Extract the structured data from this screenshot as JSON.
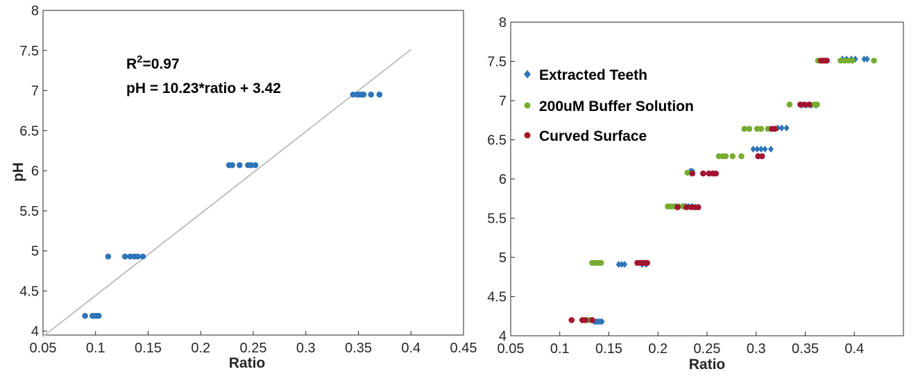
{
  "chart_data": [
    {
      "type": "scatter",
      "xlabel": "Ratio",
      "ylabel": "pH",
      "xlim": [
        0.05,
        0.45
      ],
      "ylim": [
        3.95,
        8
      ],
      "xticks": [
        "0.05",
        "0.1",
        "0.15",
        "0.2",
        "0.25",
        "0.3",
        "0.35",
        "0.4",
        "0.45"
      ],
      "yticks": [
        "4",
        "4.5",
        "5",
        "5.5",
        "6",
        "6.5",
        "7",
        "7.5",
        "8"
      ],
      "grid": false,
      "annotation": {
        "r2_prefix": "R",
        "r2_sup": "2",
        "r2_value": "=0.97",
        "equation": "pH = 10.23*ratio + 3.42"
      },
      "fit_line": {
        "slope": 10.23,
        "intercept": 3.42,
        "x_range": [
          0.05,
          0.4
        ],
        "color": "#c0c0c0"
      },
      "series": [
        {
          "color": "#2e74b8",
          "points": [
            [
              0.09,
              4.19
            ],
            [
              0.097,
              4.19
            ],
            [
              0.099,
              4.19
            ],
            [
              0.101,
              4.19
            ],
            [
              0.103,
              4.19
            ],
            [
              0.112,
              4.93
            ],
            [
              0.128,
              4.93
            ],
            [
              0.133,
              4.93
            ],
            [
              0.137,
              4.93
            ],
            [
              0.14,
              4.93
            ],
            [
              0.145,
              4.93
            ],
            [
              0.227,
              6.07
            ],
            [
              0.23,
              6.07
            ],
            [
              0.237,
              6.07
            ],
            [
              0.245,
              6.07
            ],
            [
              0.248,
              6.07
            ],
            [
              0.252,
              6.07
            ],
            [
              0.345,
              6.95
            ],
            [
              0.349,
              6.95
            ],
            [
              0.351,
              6.95
            ],
            [
              0.353,
              6.95
            ],
            [
              0.355,
              6.95
            ],
            [
              0.362,
              6.95
            ],
            [
              0.37,
              6.95
            ]
          ]
        }
      ]
    },
    {
      "type": "scatter",
      "xlabel": "Ratio",
      "ylabel": "",
      "xlim": [
        0.05,
        0.45
      ],
      "ylim": [
        4,
        8
      ],
      "xticks": [
        "0.05",
        "0.1",
        "0.15",
        "0.2",
        "0.25",
        "0.3",
        "0.35",
        "0.4"
      ],
      "yticks": [
        "4",
        "4.5",
        "5",
        "5.5",
        "6",
        "6.5",
        "7",
        "7.5",
        "8"
      ],
      "grid": false,
      "legend_position": "top-left",
      "series": [
        {
          "name": "Extracted Teeth",
          "marker": "diamond",
          "color": "#2e74b8",
          "points": [
            [
              0.135,
              4.18
            ],
            [
              0.137,
              4.18
            ],
            [
              0.139,
              4.18
            ],
            [
              0.141,
              4.18
            ],
            [
              0.143,
              4.18
            ],
            [
              0.16,
              4.91
            ],
            [
              0.163,
              4.91
            ],
            [
              0.166,
              4.91
            ],
            [
              0.184,
              4.91
            ],
            [
              0.188,
              4.91
            ],
            [
              0.218,
              5.65
            ],
            [
              0.225,
              5.65
            ],
            [
              0.228,
              5.65
            ],
            [
              0.231,
              5.65
            ],
            [
              0.235,
              5.65
            ],
            [
              0.233,
              6.1
            ],
            [
              0.235,
              6.1
            ],
            [
              0.297,
              6.38
            ],
            [
              0.301,
              6.38
            ],
            [
              0.305,
              6.38
            ],
            [
              0.309,
              6.38
            ],
            [
              0.315,
              6.38
            ],
            [
              0.322,
              6.65
            ],
            [
              0.326,
              6.65
            ],
            [
              0.331,
              6.65
            ],
            [
              0.346,
              6.94
            ],
            [
              0.351,
              6.94
            ],
            [
              0.356,
              6.94
            ],
            [
              0.361,
              6.94
            ],
            [
              0.388,
              7.53
            ],
            [
              0.392,
              7.53
            ],
            [
              0.397,
              7.53
            ],
            [
              0.401,
              7.53
            ],
            [
              0.41,
              7.53
            ],
            [
              0.413,
              7.53
            ]
          ]
        },
        {
          "name": "200uM Buffer Solution",
          "marker": "circle",
          "color": "#77ac30",
          "points": [
            [
              0.128,
              4.2
            ],
            [
              0.131,
              4.2
            ],
            [
              0.133,
              4.93
            ],
            [
              0.136,
              4.93
            ],
            [
              0.139,
              4.93
            ],
            [
              0.142,
              4.93
            ],
            [
              0.21,
              5.65
            ],
            [
              0.213,
              5.65
            ],
            [
              0.216,
              5.65
            ],
            [
              0.221,
              5.65
            ],
            [
              0.226,
              5.65
            ],
            [
              0.23,
              6.08
            ],
            [
              0.262,
              6.29
            ],
            [
              0.266,
              6.29
            ],
            [
              0.269,
              6.29
            ],
            [
              0.276,
              6.29
            ],
            [
              0.285,
              6.29
            ],
            [
              0.288,
              6.64
            ],
            [
              0.293,
              6.64
            ],
            [
              0.301,
              6.64
            ],
            [
              0.305,
              6.64
            ],
            [
              0.312,
              6.64
            ],
            [
              0.334,
              6.95
            ],
            [
              0.359,
              6.95
            ],
            [
              0.362,
              6.95
            ],
            [
              0.363,
              7.51
            ],
            [
              0.386,
              7.51
            ],
            [
              0.39,
              7.51
            ],
            [
              0.394,
              7.51
            ],
            [
              0.398,
              7.51
            ],
            [
              0.42,
              7.51
            ]
          ]
        },
        {
          "name": "Curved Surface",
          "marker": "circle",
          "color": "#a2142f",
          "points": [
            [
              0.112,
              4.2
            ],
            [
              0.123,
              4.2
            ],
            [
              0.126,
              4.2
            ],
            [
              0.133,
              4.2
            ],
            [
              0.179,
              4.93
            ],
            [
              0.182,
              4.93
            ],
            [
              0.184,
              4.93
            ],
            [
              0.187,
              4.93
            ],
            [
              0.189,
              4.93
            ],
            [
              0.22,
              5.64
            ],
            [
              0.229,
              5.64
            ],
            [
              0.234,
              5.64
            ],
            [
              0.238,
              5.64
            ],
            [
              0.241,
              5.64
            ],
            [
              0.235,
              6.07
            ],
            [
              0.246,
              6.07
            ],
            [
              0.252,
              6.07
            ],
            [
              0.256,
              6.07
            ],
            [
              0.259,
              6.07
            ],
            [
              0.302,
              6.29
            ],
            [
              0.306,
              6.29
            ],
            [
              0.316,
              6.64
            ],
            [
              0.319,
              6.64
            ],
            [
              0.345,
              6.95
            ],
            [
              0.349,
              6.95
            ],
            [
              0.354,
              6.95
            ],
            [
              0.366,
              7.51
            ],
            [
              0.368,
              7.51
            ],
            [
              0.37,
              7.51
            ],
            [
              0.372,
              7.51
            ]
          ]
        }
      ]
    }
  ]
}
